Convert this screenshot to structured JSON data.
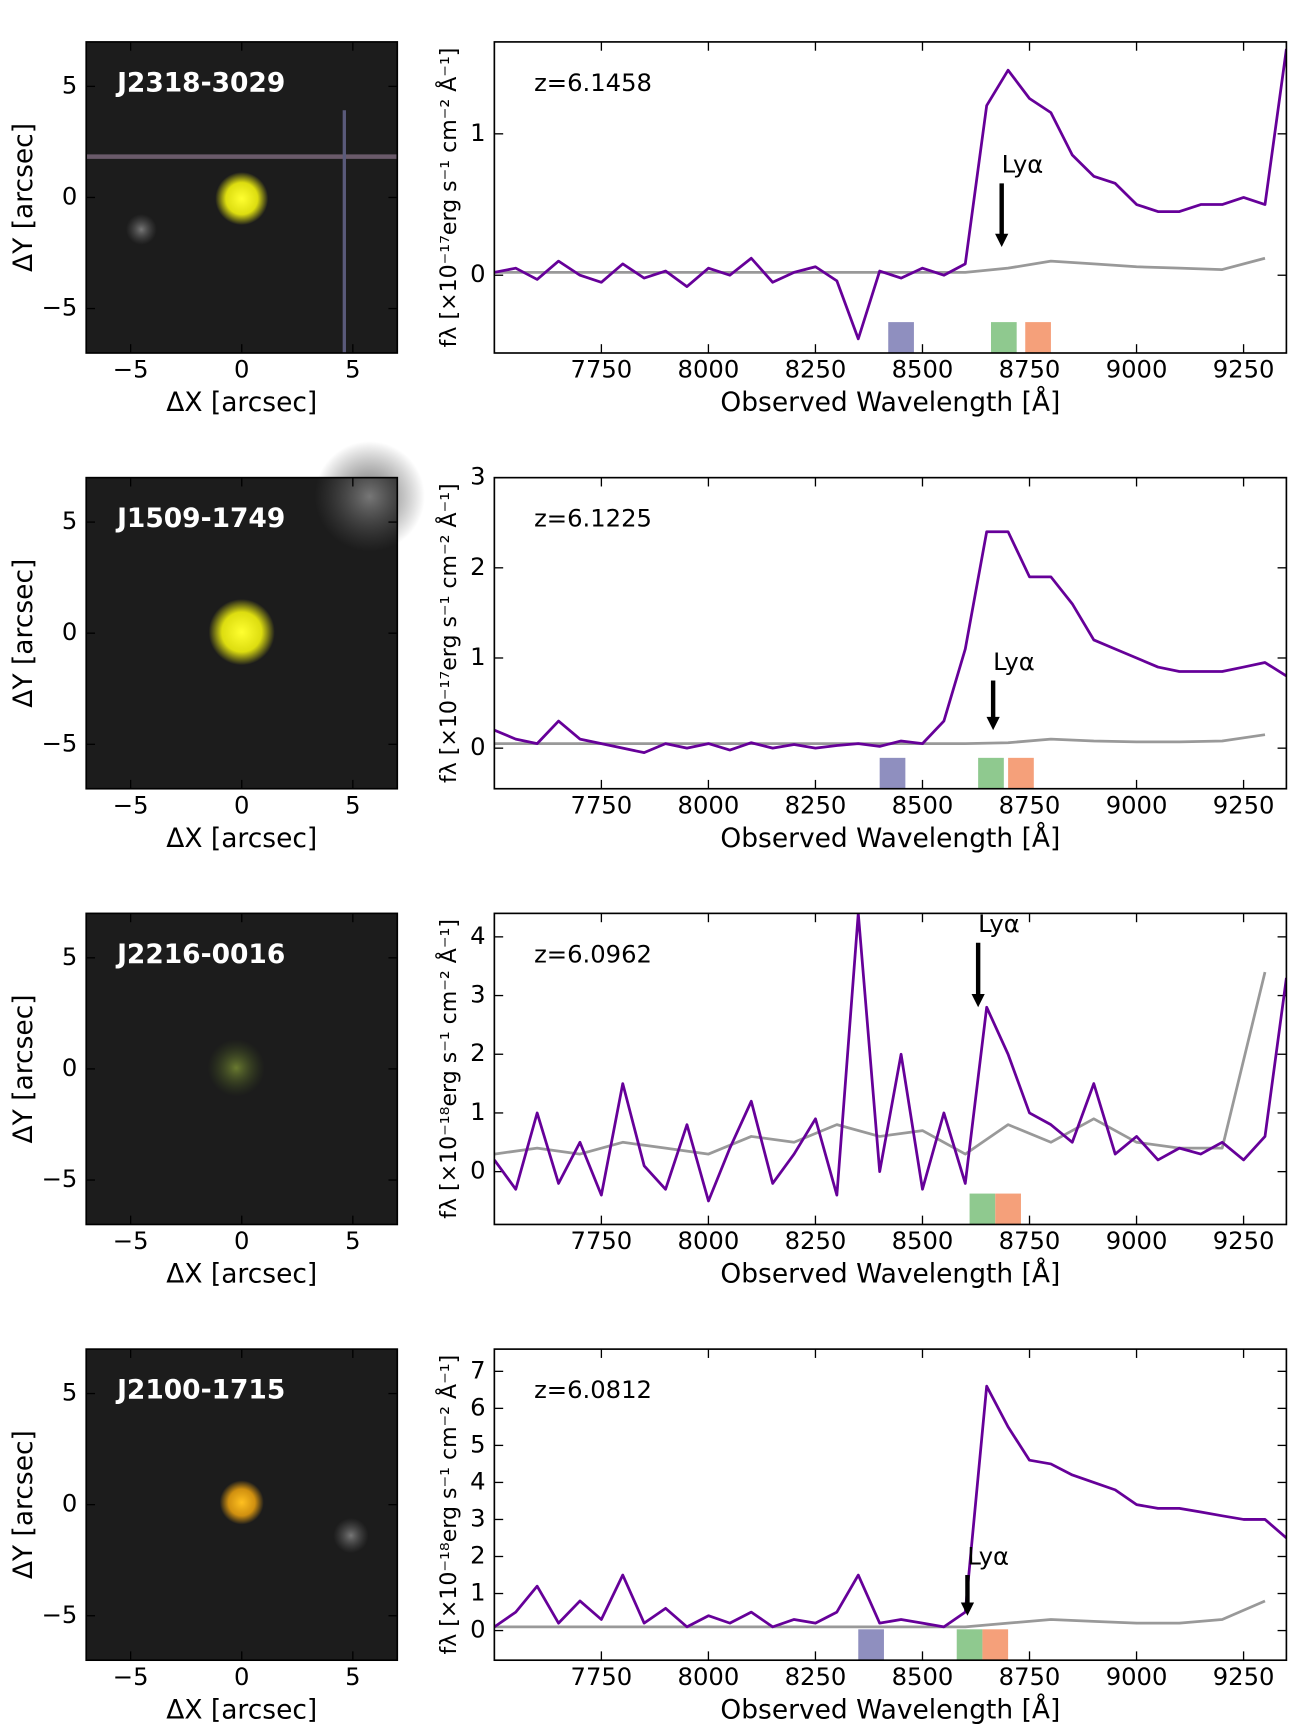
{
  "chart_data": [
    {
      "type": "image",
      "title": "J2318-3029",
      "xlabel": "ΔX [arcsec]",
      "ylabel": "ΔY [arcsec]",
      "xlim": [
        -7,
        7
      ],
      "ylim": [
        -7,
        7
      ],
      "xticks": [
        {
          "value": -5,
          "label": "−5"
        },
        0,
        5
      ],
      "yticks": [
        {
          "value": -5,
          "label": "−5"
        },
        0,
        5
      ]
    },
    {
      "type": "line",
      "text": "z=6.1458",
      "xlabel": "Observed Wavelength [Å]",
      "ylabel": "fλ [×10⁻¹⁷erg s⁻¹ cm⁻² Å⁻¹]",
      "xlim": [
        7500,
        9350
      ],
      "ylim": [
        -0.55,
        1.65
      ],
      "xticks": [
        7750,
        8000,
        8250,
        8500,
        8750,
        9000,
        9250
      ],
      "yticks": [
        0,
        1
      ],
      "series": [
        {
          "color": "#660099",
          "x": [
            7500,
            7550,
            7600,
            7650,
            7700,
            7750,
            7800,
            7850,
            7900,
            7950,
            8000,
            8050,
            8100,
            8150,
            8200,
            8250,
            8300,
            8350,
            8400,
            8450,
            8500,
            8550,
            8600,
            8650,
            8700,
            8750,
            8800,
            8850,
            8900,
            8950,
            9000,
            9050,
            9100,
            9150,
            9200,
            9250,
            9300,
            9350
          ],
          "values": [
            0.02,
            0.05,
            -0.03,
            0.1,
            0.0,
            -0.05,
            0.08,
            -0.02,
            0.03,
            -0.08,
            0.05,
            0.0,
            0.12,
            -0.05,
            0.02,
            0.06,
            -0.04,
            -0.45,
            0.03,
            -0.02,
            0.05,
            0.0,
            0.08,
            1.2,
            1.45,
            1.25,
            1.15,
            0.85,
            0.7,
            0.65,
            0.5,
            0.45,
            0.45,
            0.5,
            0.5,
            0.55,
            0.5,
            1.6
          ]
        },
        {
          "color": "#999999",
          "x": [
            7500,
            7600,
            7700,
            7800,
            7900,
            8000,
            8100,
            8200,
            8300,
            8400,
            8500,
            8600,
            8700,
            8800,
            8900,
            9000,
            9100,
            9200,
            9300
          ],
          "values": [
            0.02,
            0.02,
            0.02,
            0.02,
            0.02,
            0.02,
            0.02,
            0.02,
            0.02,
            0.02,
            0.02,
            0.02,
            0.05,
            0.1,
            0.08,
            0.06,
            0.05,
            0.04,
            0.12
          ]
        }
      ],
      "annotations": [
        {
          "text": "Lyα",
          "x": 8685,
          "y": [
            0.65,
            0.2
          ]
        }
      ],
      "bands": [
        {
          "range": [
            8420,
            8480
          ],
          "color": "#8f8fbf"
        },
        {
          "range": [
            8660,
            8720
          ],
          "color": "#8fc98f"
        },
        {
          "range": [
            8740,
            8800
          ],
          "color": "#f5a07a"
        }
      ]
    },
    {
      "type": "image",
      "title": "J1509-1749",
      "xlabel": "ΔX [arcsec]",
      "ylabel": "ΔY [arcsec]",
      "xlim": [
        -7,
        7
      ],
      "ylim": [
        -7,
        7
      ],
      "xticks": [
        {
          "value": -5,
          "label": "−5"
        },
        0,
        5
      ],
      "yticks": [
        {
          "value": -5,
          "label": "−5"
        },
        0,
        5
      ]
    },
    {
      "type": "line",
      "text": "z=6.1225",
      "xlabel": "Observed Wavelength [Å]",
      "ylabel": "fλ [×10⁻¹⁷erg s⁻¹ cm⁻² Å⁻¹]",
      "xlim": [
        7500,
        9350
      ],
      "ylim": [
        -0.45,
        3.0
      ],
      "xticks": [
        7750,
        8000,
        8250,
        8500,
        8750,
        9000,
        9250
      ],
      "yticks": [
        0,
        1,
        2,
        3
      ],
      "series": [
        {
          "color": "#660099",
          "x": [
            7500,
            7550,
            7600,
            7650,
            7700,
            7750,
            7800,
            7850,
            7900,
            7950,
            8000,
            8050,
            8100,
            8150,
            8200,
            8250,
            8300,
            8350,
            8400,
            8450,
            8500,
            8550,
            8600,
            8650,
            8700,
            8750,
            8800,
            8850,
            8900,
            8950,
            9000,
            9050,
            9100,
            9150,
            9200,
            9250,
            9300,
            9350
          ],
          "values": [
            0.2,
            0.1,
            0.05,
            0.3,
            0.1,
            0.05,
            0.0,
            -0.05,
            0.05,
            0.0,
            0.05,
            -0.02,
            0.06,
            0.0,
            0.04,
            0.0,
            0.03,
            0.05,
            0.02,
            0.08,
            0.05,
            0.3,
            1.1,
            2.4,
            2.4,
            1.9,
            1.9,
            1.6,
            1.2,
            1.1,
            1.0,
            0.9,
            0.85,
            0.85,
            0.85,
            0.9,
            0.95,
            0.8
          ]
        },
        {
          "color": "#999999",
          "x": [
            7500,
            7600,
            7700,
            7800,
            7900,
            8000,
            8100,
            8200,
            8300,
            8400,
            8500,
            8600,
            8700,
            8800,
            8900,
            9000,
            9100,
            9200,
            9300
          ],
          "values": [
            0.05,
            0.05,
            0.05,
            0.05,
            0.05,
            0.05,
            0.05,
            0.05,
            0.05,
            0.05,
            0.05,
            0.05,
            0.06,
            0.1,
            0.08,
            0.07,
            0.07,
            0.08,
            0.15
          ]
        }
      ],
      "annotations": [
        {
          "text": "Lyα",
          "x": 8665,
          "y": [
            0.75,
            0.2
          ]
        }
      ],
      "bands": [
        {
          "range": [
            8400,
            8460
          ],
          "color": "#8f8fbf"
        },
        {
          "range": [
            8630,
            8690
          ],
          "color": "#8fc98f"
        },
        {
          "range": [
            8700,
            8760
          ],
          "color": "#f5a07a"
        }
      ]
    },
    {
      "type": "image",
      "title": "J2216-0016",
      "xlabel": "ΔX [arcsec]",
      "ylabel": "ΔY [arcsec]",
      "xlim": [
        -7,
        7
      ],
      "ylim": [
        -7,
        7
      ],
      "xticks": [
        {
          "value": -5,
          "label": "−5"
        },
        0,
        5
      ],
      "yticks": [
        {
          "value": -5,
          "label": "−5"
        },
        0,
        5
      ]
    },
    {
      "type": "line",
      "text": "z=6.0962",
      "xlabel": "Observed Wavelength [Å]",
      "ylabel": "fλ [×10⁻¹⁸erg s⁻¹ cm⁻² Å⁻¹]",
      "xlim": [
        7500,
        9350
      ],
      "ylim": [
        -0.9,
        4.4
      ],
      "xticks": [
        7750,
        8000,
        8250,
        8500,
        8750,
        9000,
        9250
      ],
      "yticks": [
        0,
        1,
        2,
        3,
        4
      ],
      "series": [
        {
          "color": "#660099",
          "x": [
            7500,
            7550,
            7600,
            7650,
            7700,
            7750,
            7800,
            7850,
            7900,
            7950,
            8000,
            8050,
            8100,
            8150,
            8200,
            8250,
            8300,
            8350,
            8400,
            8450,
            8500,
            8550,
            8600,
            8650,
            8700,
            8750,
            8800,
            8850,
            8900,
            8950,
            9000,
            9050,
            9100,
            9150,
            9200,
            9250,
            9300,
            9350
          ],
          "values": [
            0.2,
            -0.3,
            1.0,
            -0.2,
            0.5,
            -0.4,
            1.5,
            0.1,
            -0.3,
            0.8,
            -0.5,
            0.4,
            1.2,
            -0.2,
            0.3,
            0.9,
            -0.4,
            4.4,
            0.0,
            2.0,
            -0.3,
            1.0,
            -0.2,
            2.8,
            2.0,
            1.0,
            0.8,
            0.5,
            1.5,
            0.3,
            0.6,
            0.2,
            0.4,
            0.3,
            0.5,
            0.2,
            0.6,
            3.3
          ]
        },
        {
          "color": "#999999",
          "x": [
            7500,
            7600,
            7700,
            7800,
            7900,
            8000,
            8100,
            8200,
            8300,
            8400,
            8500,
            8600,
            8700,
            8800,
            8900,
            9000,
            9100,
            9200,
            9300
          ],
          "values": [
            0.3,
            0.4,
            0.3,
            0.5,
            0.4,
            0.3,
            0.6,
            0.5,
            0.8,
            0.6,
            0.7,
            0.3,
            0.8,
            0.5,
            0.9,
            0.5,
            0.4,
            0.4,
            3.4
          ]
        }
      ],
      "annotations": [
        {
          "text": "Lyα",
          "x": 8630,
          "y": [
            3.9,
            2.8
          ]
        }
      ],
      "bands": [
        {
          "range": [
            8610,
            8670
          ],
          "color": "#8fc98f"
        },
        {
          "range": [
            8670,
            8730
          ],
          "color": "#f5a07a"
        }
      ]
    },
    {
      "type": "image",
      "title": "J2100-1715",
      "xlabel": "ΔX [arcsec]",
      "ylabel": "ΔY [arcsec]",
      "xlim": [
        -7,
        7
      ],
      "ylim": [
        -7,
        7
      ],
      "xticks": [
        {
          "value": -5,
          "label": "−5"
        },
        0,
        5
      ],
      "yticks": [
        {
          "value": -5,
          "label": "−5"
        },
        0,
        5
      ]
    },
    {
      "type": "line",
      "text": "z=6.0812",
      "xlabel": "Observed Wavelength [Å]",
      "ylabel": "fλ [×10⁻¹⁸erg s⁻¹ cm⁻² Å⁻¹]",
      "xlim": [
        7500,
        9350
      ],
      "ylim": [
        -0.8,
        7.6
      ],
      "xticks": [
        7750,
        8000,
        8250,
        8500,
        8750,
        9000,
        9250
      ],
      "yticks": [
        0,
        1,
        2,
        3,
        4,
        5,
        6,
        7
      ],
      "series": [
        {
          "color": "#660099",
          "x": [
            7500,
            7550,
            7600,
            7650,
            7700,
            7750,
            7800,
            7850,
            7900,
            7950,
            8000,
            8050,
            8100,
            8150,
            8200,
            8250,
            8300,
            8350,
            8400,
            8450,
            8500,
            8550,
            8600,
            8650,
            8700,
            8750,
            8800,
            8850,
            8900,
            8950,
            9000,
            9050,
            9100,
            9150,
            9200,
            9250,
            9300,
            9350
          ],
          "values": [
            0.1,
            0.5,
            1.2,
            0.2,
            0.8,
            0.3,
            1.5,
            0.2,
            0.6,
            0.1,
            0.4,
            0.2,
            0.5,
            0.1,
            0.3,
            0.2,
            0.5,
            1.5,
            0.2,
            0.3,
            0.2,
            0.1,
            0.5,
            6.6,
            5.5,
            4.6,
            4.5,
            4.2,
            4.0,
            3.8,
            3.4,
            3.3,
            3.3,
            3.2,
            3.1,
            3.0,
            3.0,
            2.5
          ]
        },
        {
          "color": "#999999",
          "x": [
            7500,
            7600,
            7700,
            7800,
            7900,
            8000,
            8100,
            8200,
            8300,
            8400,
            8500,
            8600,
            8700,
            8800,
            8900,
            9000,
            9100,
            9200,
            9300
          ],
          "values": [
            0.1,
            0.1,
            0.1,
            0.1,
            0.1,
            0.1,
            0.1,
            0.1,
            0.1,
            0.1,
            0.1,
            0.1,
            0.2,
            0.3,
            0.25,
            0.2,
            0.2,
            0.3,
            0.8
          ]
        }
      ],
      "annotations": [
        {
          "text": "Lyα",
          "x": 8605,
          "y": [
            1.5,
            0.4
          ]
        }
      ],
      "bands": [
        {
          "range": [
            8350,
            8410
          ],
          "color": "#8f8fbf"
        },
        {
          "range": [
            8580,
            8640
          ],
          "color": "#8fc98f"
        },
        {
          "range": [
            8640,
            8700
          ],
          "color": "#f5a07a"
        }
      ]
    }
  ]
}
